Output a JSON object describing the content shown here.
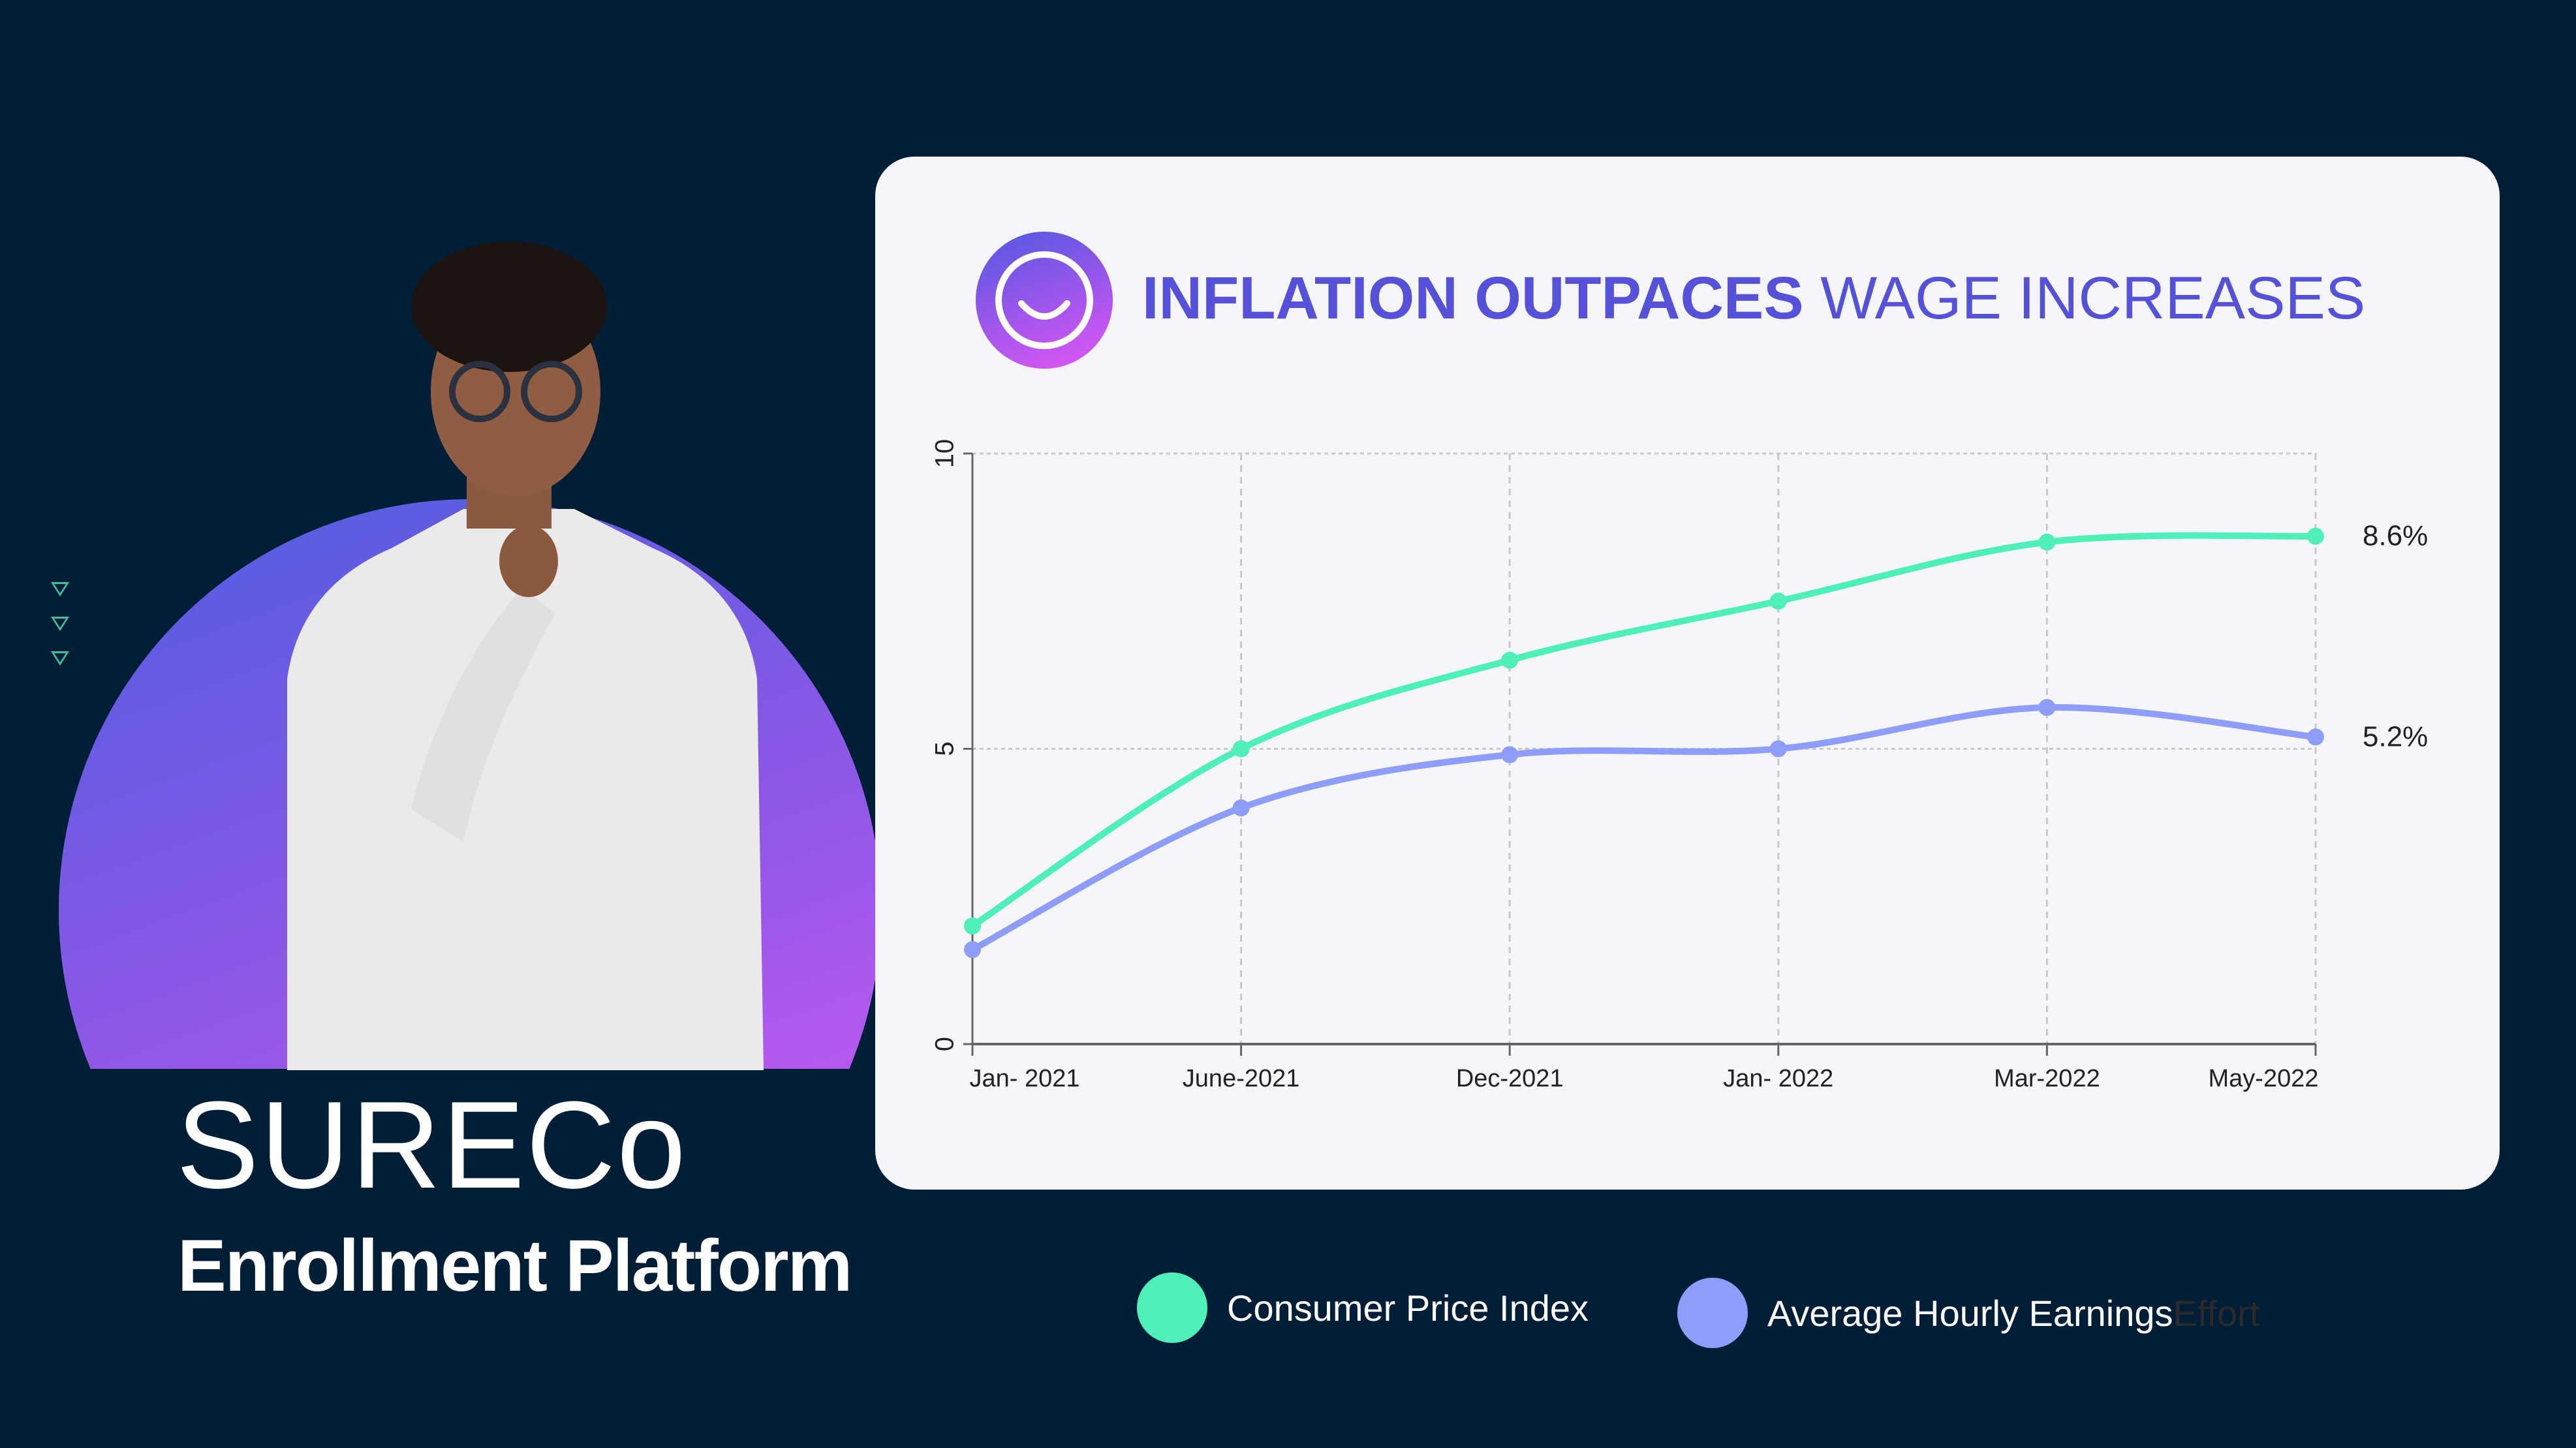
{
  "brand": {
    "logo": "SURECo",
    "subtitle": "Enrollment Platform"
  },
  "chart_data": {
    "type": "line",
    "title_bold": "INFLATION OUTPACES",
    "title_rest": "WAGE INCREASES",
    "categories": [
      "Jan- 2021",
      "June-2021",
      "Dec-2021",
      "Jan- 2022",
      "Mar-2022",
      "May-2022"
    ],
    "ylim": [
      0,
      10
    ],
    "yticks": [
      "0",
      "5",
      "10"
    ],
    "grid": true,
    "legend_placement": "bottom",
    "series": [
      {
        "name": "Consumer Price Index",
        "color": "#4ef0b8",
        "values": [
          2.0,
          5.0,
          6.5,
          7.5,
          8.5,
          8.6
        ],
        "end_label": "8.6%"
      },
      {
        "name": "Average Hourly Earnings",
        "color": "#8e9cfa",
        "values": [
          1.6,
          4.0,
          4.9,
          5.0,
          5.7,
          5.2
        ],
        "end_label": "5.2%"
      }
    ],
    "legend_trailing_text": "Effort"
  }
}
